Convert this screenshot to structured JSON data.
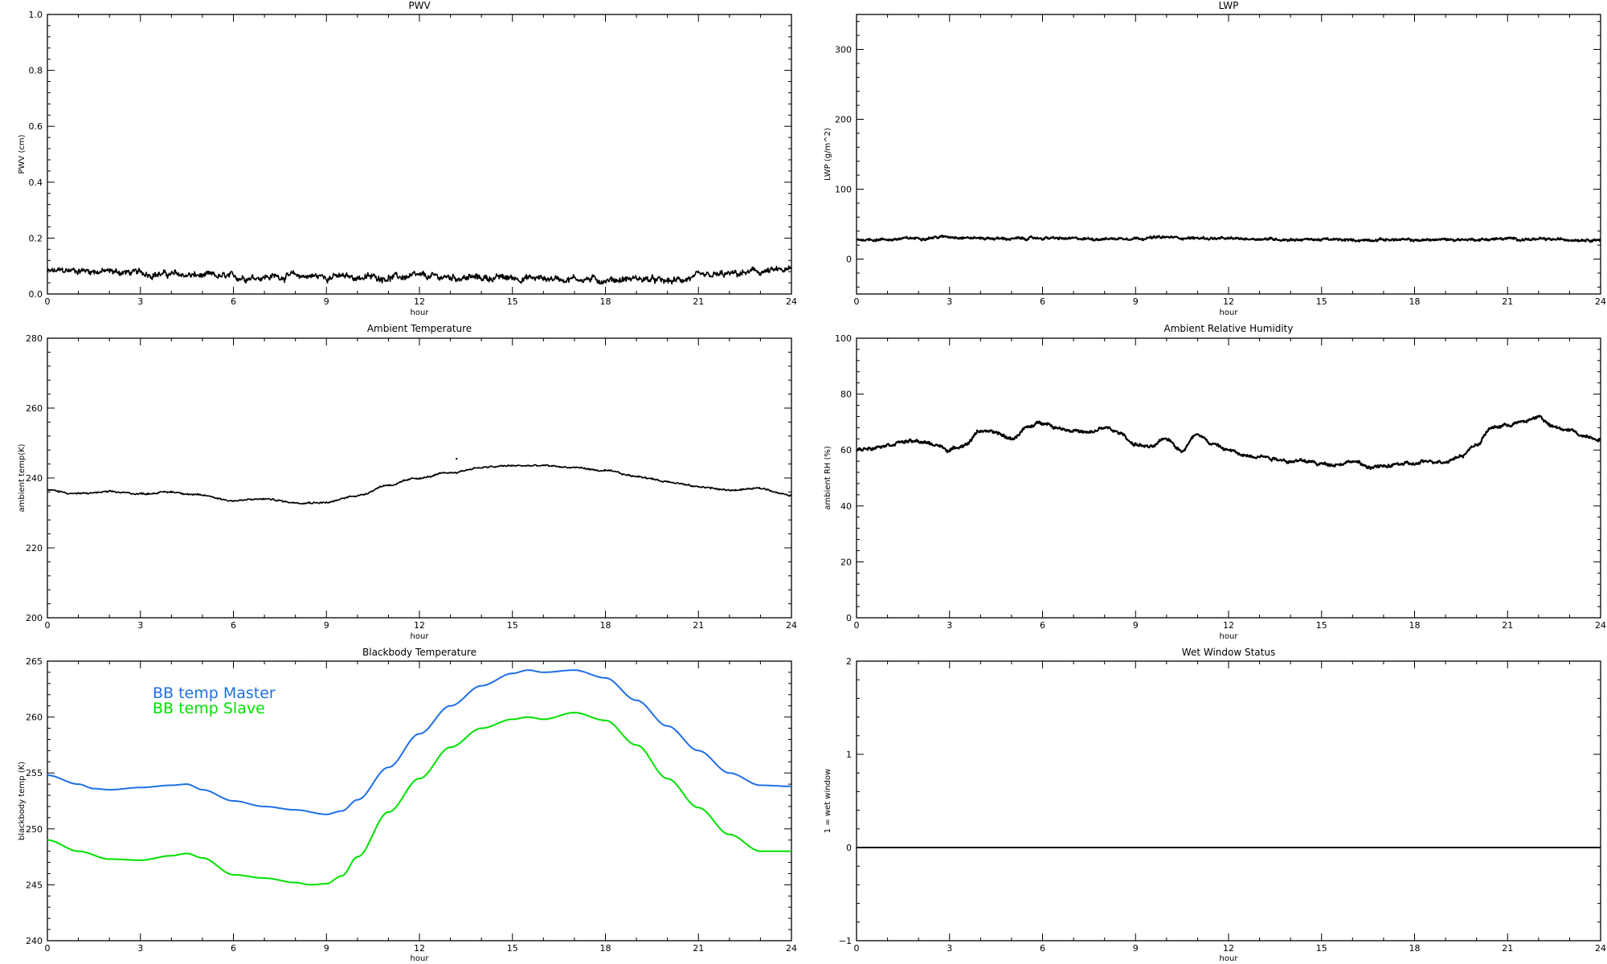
{
  "chart_data": [
    {
      "id": "pwv",
      "type": "line",
      "title": "PWV",
      "xlabel": "hour",
      "ylabel": "PWV (cm)",
      "xlim": [
        0,
        24
      ],
      "ylim": [
        0.0,
        1.0
      ],
      "xticks": [
        0,
        3,
        6,
        9,
        12,
        15,
        18,
        21,
        24
      ],
      "yticks": [
        0.0,
        0.2,
        0.4,
        0.6,
        0.8,
        1.0
      ],
      "ytick_labels": [
        "0.0",
        "0.2",
        "0.4",
        "0.6",
        "0.8",
        "1.0"
      ],
      "noise": 0.012,
      "series": [
        {
          "color": "#000000",
          "x": [
            0,
            1,
            2,
            3,
            4,
            5,
            6,
            7,
            8,
            9,
            10,
            11,
            12,
            13,
            14,
            15,
            16,
            17,
            18,
            19,
            20,
            21,
            22,
            23,
            24
          ],
          "values": [
            0.08,
            0.085,
            0.08,
            0.075,
            0.07,
            0.065,
            0.06,
            0.062,
            0.065,
            0.063,
            0.06,
            0.06,
            0.062,
            0.06,
            0.058,
            0.058,
            0.056,
            0.055,
            0.05,
            0.055,
            0.045,
            0.06,
            0.07,
            0.08,
            0.085
          ]
        }
      ]
    },
    {
      "id": "lwp",
      "type": "line",
      "title": "LWP",
      "xlabel": "hour",
      "ylabel": "LWP (g/m^2)",
      "xlim": [
        0,
        24
      ],
      "ylim": [
        -50,
        350
      ],
      "xticks": [
        0,
        3,
        6,
        9,
        12,
        15,
        18,
        21,
        24
      ],
      "yticks": [
        0,
        100,
        200,
        300
      ],
      "ytick_labels": [
        "0",
        "100",
        "200",
        "300"
      ],
      "noise": 1.8,
      "series": [
        {
          "color": "#000000",
          "x": [
            0,
            1,
            2,
            3,
            4,
            5,
            6,
            7,
            8,
            9,
            10,
            11,
            12,
            13,
            14,
            15,
            16,
            17,
            18,
            19,
            20,
            21,
            22,
            23,
            24
          ],
          "values": [
            28,
            28,
            30,
            32,
            30,
            29,
            30,
            29,
            29,
            30,
            31,
            30,
            29,
            29,
            28,
            28,
            27,
            28,
            27,
            28,
            28,
            29,
            28,
            28,
            28
          ]
        }
      ]
    },
    {
      "id": "ambient-temperature",
      "type": "line",
      "title": "Ambient Temperature",
      "xlabel": "hour",
      "ylabel": "ambient temp(K)",
      "xlim": [
        0,
        24
      ],
      "ylim": [
        200,
        280
      ],
      "xticks": [
        0,
        3,
        6,
        9,
        12,
        15,
        18,
        21,
        24
      ],
      "yticks": [
        200,
        220,
        240,
        260,
        280
      ],
      "ytick_labels": [
        "200",
        "220",
        "240",
        "260",
        "280"
      ],
      "noise": 0.25,
      "series": [
        {
          "color": "#000000",
          "x": [
            0,
            1,
            2,
            3,
            4,
            5,
            6,
            7,
            8,
            9,
            10,
            11,
            12,
            13,
            14,
            15,
            16,
            17,
            18,
            19,
            20,
            21,
            22,
            23,
            24
          ],
          "values": [
            236.5,
            235.5,
            236,
            235.5,
            236,
            235,
            233.5,
            234,
            233,
            233,
            235,
            238,
            240,
            241.5,
            243,
            243.5,
            243.5,
            243,
            242,
            240.5,
            239,
            237.5,
            236.5,
            237,
            235
          ]
        }
      ],
      "outliers": [
        {
          "x": 13.2,
          "y": 245.5
        }
      ]
    },
    {
      "id": "ambient-relative-humidity",
      "type": "line",
      "title": "Ambient Relative Humidity",
      "xlabel": "hour",
      "ylabel": "ambient RH (%)",
      "xlim": [
        0,
        24
      ],
      "ylim": [
        0,
        100
      ],
      "xticks": [
        0,
        3,
        6,
        9,
        12,
        15,
        18,
        21,
        24
      ],
      "yticks": [
        0,
        20,
        40,
        60,
        80,
        100
      ],
      "ytick_labels": [
        "0",
        "20",
        "40",
        "60",
        "80",
        "100"
      ],
      "noise": 0.6,
      "series": [
        {
          "color": "#000000",
          "x": [
            0,
            0.5,
            1,
            1.5,
            2,
            2.5,
            3,
            3.5,
            4,
            4.5,
            5,
            5.5,
            6,
            6.5,
            7,
            7.5,
            8,
            8.5,
            9,
            9.5,
            10,
            10.5,
            11,
            11.5,
            12,
            12.5,
            13,
            13.5,
            14,
            14.5,
            15,
            15.5,
            16,
            16.5,
            17,
            17.5,
            18,
            18.5,
            19,
            19.5,
            20,
            20.5,
            21,
            21.5,
            22,
            22.5,
            23,
            23.5,
            24
          ],
          "values": [
            60,
            61,
            62,
            63,
            63,
            62,
            60,
            62,
            67,
            66,
            64,
            68,
            70,
            68,
            67,
            66,
            68,
            66,
            62,
            61,
            64,
            60,
            66,
            62,
            60,
            58,
            58,
            57,
            56,
            56,
            55,
            55,
            56,
            54,
            54,
            55,
            55,
            56,
            56,
            58,
            62,
            68,
            69,
            70,
            72,
            68,
            67,
            65,
            64
          ]
        }
      ]
    },
    {
      "id": "blackbody-temperature",
      "type": "line",
      "title": "Blackbody Temperature",
      "xlabel": "hour",
      "ylabel": "blackbody temp (K)",
      "xlim": [
        0,
        24
      ],
      "ylim": [
        240,
        265
      ],
      "xticks": [
        0,
        3,
        6,
        9,
        12,
        15,
        18,
        21,
        24
      ],
      "yticks": [
        240,
        245,
        250,
        255,
        260,
        265
      ],
      "ytick_labels": [
        "240",
        "245",
        "250",
        "255",
        "260",
        "265"
      ],
      "noise": 0,
      "series": [
        {
          "name": "BB temp Master",
          "color": "#1f6fe6",
          "x": [
            0,
            1,
            1.5,
            2,
            3,
            4,
            4.5,
            5,
            6,
            7,
            8,
            9,
            9.5,
            10,
            11,
            12,
            13,
            14,
            15,
            15.5,
            16,
            17,
            18,
            19,
            20,
            21,
            22,
            23,
            24
          ],
          "values": [
            254.8,
            254,
            253.6,
            253.5,
            253.7,
            253.9,
            254,
            253.5,
            252.5,
            252,
            251.7,
            251.3,
            251.6,
            252.6,
            255.5,
            258.5,
            261,
            262.8,
            263.9,
            264.2,
            264,
            264.2,
            263.5,
            261.5,
            259.2,
            257,
            255,
            253.9,
            253.8
          ]
        },
        {
          "name": "BB temp Slave",
          "color": "#00e000",
          "x": [
            0,
            1,
            2,
            3,
            4,
            4.5,
            5,
            6,
            7,
            8,
            8.5,
            9,
            9.5,
            10,
            11,
            12,
            13,
            14,
            15,
            15.5,
            16,
            17,
            18,
            19,
            20,
            21,
            22,
            23,
            24
          ],
          "values": [
            249,
            248,
            247.3,
            247.2,
            247.6,
            247.8,
            247.4,
            245.9,
            245.6,
            245.2,
            245,
            245.1,
            245.8,
            247.5,
            251.5,
            254.5,
            257.3,
            259,
            259.8,
            260,
            259.8,
            260.4,
            259.7,
            257.5,
            254.5,
            251.9,
            249.5,
            248,
            248
          ]
        }
      ]
    },
    {
      "id": "wet-window-status",
      "type": "line",
      "title": "Wet Window Status",
      "xlabel": "hour",
      "ylabel": "1 = wet window",
      "xlim": [
        0,
        24
      ],
      "ylim": [
        -1,
        2
      ],
      "xticks": [
        0,
        3,
        6,
        9,
        12,
        15,
        18,
        21,
        24
      ],
      "yticks": [
        -1,
        0,
        1,
        2
      ],
      "ytick_labels": [
        "−1",
        "0",
        "1",
        "2"
      ],
      "noise": 0,
      "series": [
        {
          "color": "#000000",
          "x": [
            0,
            24
          ],
          "values": [
            0,
            0
          ]
        }
      ]
    }
  ]
}
